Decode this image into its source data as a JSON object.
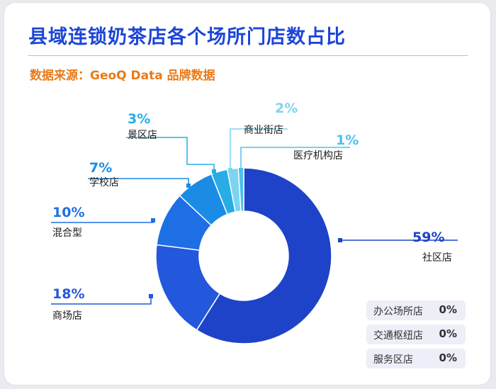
{
  "title": "县域连锁奶茶店各个场所门店数占比",
  "source": "数据来源：GeoQ Data 品牌数据",
  "colors": {
    "title": "#1d46d6",
    "source": "#ea7a16",
    "community": "#1e43c8",
    "mall": "#2357dc",
    "mixed": "#1e6fe6",
    "school": "#1a8ce6",
    "scenic": "#27ade4",
    "street": "#7dd4f0",
    "medical": "#4ec0ee"
  },
  "chart_data": {
    "type": "pie",
    "donut": true,
    "categories": [
      "社区店",
      "商场店",
      "混合型",
      "学校店",
      "景区店",
      "商业街店",
      "医疗机构店"
    ],
    "values": [
      59,
      18,
      10,
      7,
      3,
      2,
      1
    ],
    "labels": [
      "59%",
      "18%",
      "10%",
      "7%",
      "3%",
      "2%",
      "1%"
    ],
    "zero_categories": [
      {
        "name": "办公场所店",
        "value": "0%"
      },
      {
        "name": "交通枢纽店",
        "value": "0%"
      },
      {
        "name": "服务区店",
        "value": "0%"
      }
    ]
  }
}
